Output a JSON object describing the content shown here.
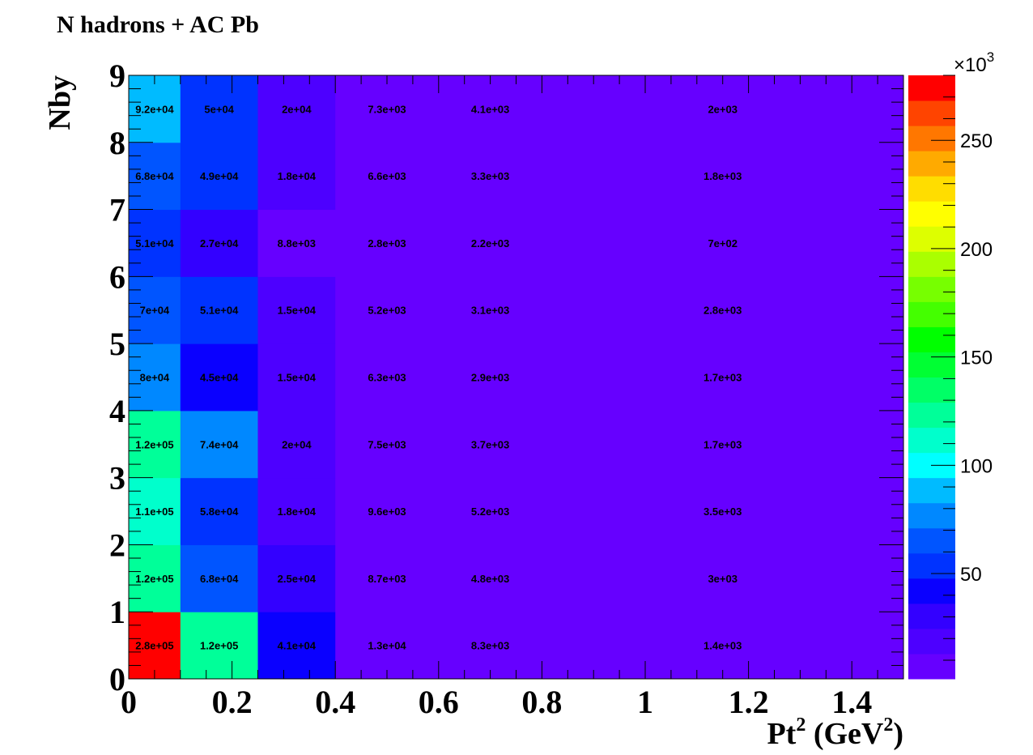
{
  "chart_data": {
    "type": "heatmap",
    "title": "N hadrons + AC Pb",
    "xlabel": "Pt",
    "xlabel_sup": "2",
    "xlabel_units_open": " (GeV",
    "xlabel_units_sup": "2",
    "xlabel_units_close": ")",
    "ylabel": "Nby",
    "xlim": [
      0,
      1.5
    ],
    "ylim": [
      0,
      9
    ],
    "x_edges": [
      0,
      0.1,
      0.25,
      0.4,
      0.6,
      0.8,
      1.5
    ],
    "y_edges": [
      0,
      1,
      2,
      3,
      4,
      5,
      6,
      7,
      8,
      9
    ],
    "x_ticks": [
      0,
      0.2,
      0.4,
      0.6,
      0.8,
      1,
      1.2,
      1.4
    ],
    "x_tick_labels": [
      "0",
      "0.2",
      "0.4",
      "0.6",
      "0.8",
      "1",
      "1.2",
      "1.4"
    ],
    "y_ticks": [
      0,
      1,
      2,
      3,
      4,
      5,
      6,
      7,
      8,
      9
    ],
    "y_tick_labels": [
      "0",
      "1",
      "2",
      "3",
      "4",
      "5",
      "6",
      "7",
      "8",
      "9"
    ],
    "values": [
      [
        280000,
        120000,
        41000,
        13000,
        8300,
        1400
      ],
      [
        120000,
        68000,
        25000,
        8700,
        4800,
        3000
      ],
      [
        110000,
        58000,
        18000,
        9600,
        5200,
        3500
      ],
      [
        120000,
        74000,
        20000,
        7500,
        3700,
        1700
      ],
      [
        80000,
        45000,
        15000,
        6300,
        2900,
        1700
      ],
      [
        70000,
        51000,
        15000,
        5200,
        3100,
        2800
      ],
      [
        51000,
        27000,
        8800,
        2800,
        2200,
        700
      ],
      [
        68000,
        49000,
        18000,
        6600,
        3300,
        1800
      ],
      [
        92000,
        50000,
        20000,
        7300,
        4100,
        2000
      ]
    ],
    "value_labels": [
      [
        "2.8e+05",
        "1.2e+05",
        "4.1e+04",
        "1.3e+04",
        "8.3e+03",
        "1.4e+03"
      ],
      [
        "1.2e+05",
        "6.8e+04",
        "2.5e+04",
        "8.7e+03",
        "4.8e+03",
        "3e+03"
      ],
      [
        "1.1e+05",
        "5.8e+04",
        "1.8e+04",
        "9.6e+03",
        "5.2e+03",
        "3.5e+03"
      ],
      [
        "1.2e+05",
        "7.4e+04",
        "2e+04",
        "7.5e+03",
        "3.7e+03",
        "1.7e+03"
      ],
      [
        "8e+04",
        "4.5e+04",
        "1.5e+04",
        "6.3e+03",
        "2.9e+03",
        "1.7e+03"
      ],
      [
        "7e+04",
        "5.1e+04",
        "1.5e+04",
        "5.2e+03",
        "3.1e+03",
        "2.8e+03"
      ],
      [
        "5.1e+04",
        "2.7e+04",
        "8.8e+03",
        "2.8e+03",
        "2.2e+03",
        "7e+02"
      ],
      [
        "6.8e+04",
        "4.9e+04",
        "1.8e+04",
        "6.6e+03",
        "3.3e+03",
        "1.8e+03"
      ],
      [
        "9.2e+04",
        "5e+04",
        "2e+04",
        "7.3e+03",
        "4.1e+03",
        "2e+03"
      ]
    ],
    "colorbar": {
      "min": 1400,
      "max": 280000,
      "levels": 20,
      "ticks": [
        50000,
        100000,
        150000,
        200000,
        250000
      ],
      "tick_labels": [
        "50",
        "100",
        "150",
        "200",
        "250"
      ],
      "multiplier_base": "×10",
      "multiplier_exp": "3",
      "palette": [
        "#6600ff",
        "#4d00ff",
        "#3300ff",
        "#0a00ff",
        "#0033ff",
        "#0055ff",
        "#0088ff",
        "#00bbff",
        "#00ffff",
        "#00ffcc",
        "#00ff99",
        "#00ff66",
        "#00ff33",
        "#00ff00",
        "#44ff00",
        "#77ff00",
        "#aaff00",
        "#ddff00",
        "#ffff00",
        "#ffdd00",
        "#ffaa00",
        "#ff7700",
        "#ff4400",
        "#ff0000"
      ]
    }
  }
}
